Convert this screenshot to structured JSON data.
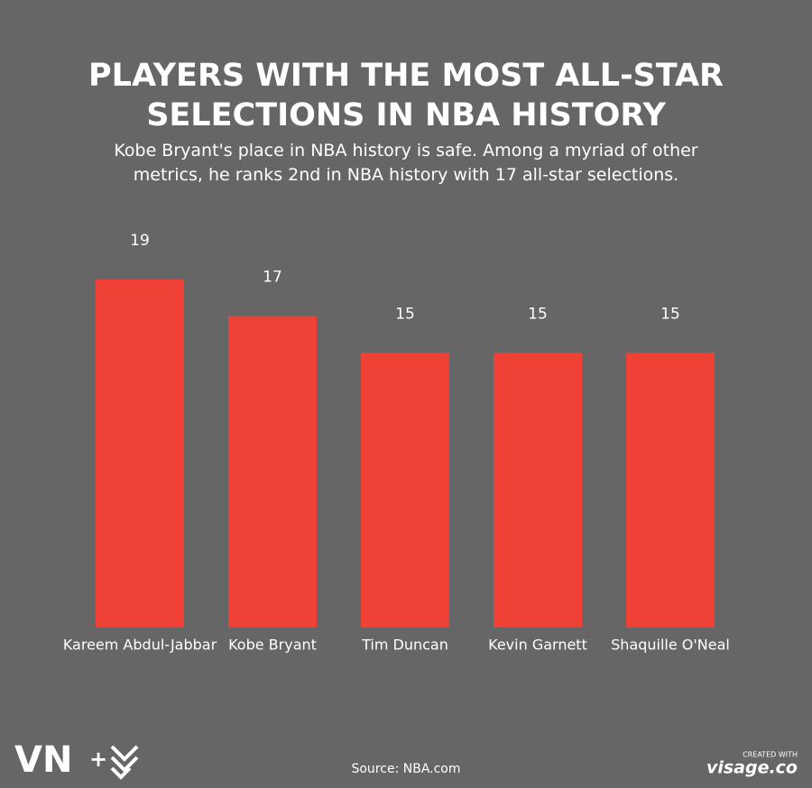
{
  "chart_data": {
    "type": "bar",
    "title": "PLAYERS WITH THE MOST ALL-STAR SELECTIONS IN NBA HISTORY",
    "subtitle": "Kobe Bryant's place in NBA history is safe. Among a myriad of other metrics, he ranks 2nd in NBA history with 17 all-star selections.",
    "categories": [
      "Kareem Abdul-Jabbar",
      "Kobe Bryant",
      "Tim Duncan",
      "Kevin Garnett",
      "Shaquille O'Neal"
    ],
    "values": [
      19,
      17,
      15,
      15,
      15
    ],
    "color": "#ef4136",
    "source": "Source: NBA.com"
  },
  "branding": {
    "logo": "VN",
    "plus": "+",
    "created_with": "CREATED WITH",
    "site": "visage.co"
  }
}
